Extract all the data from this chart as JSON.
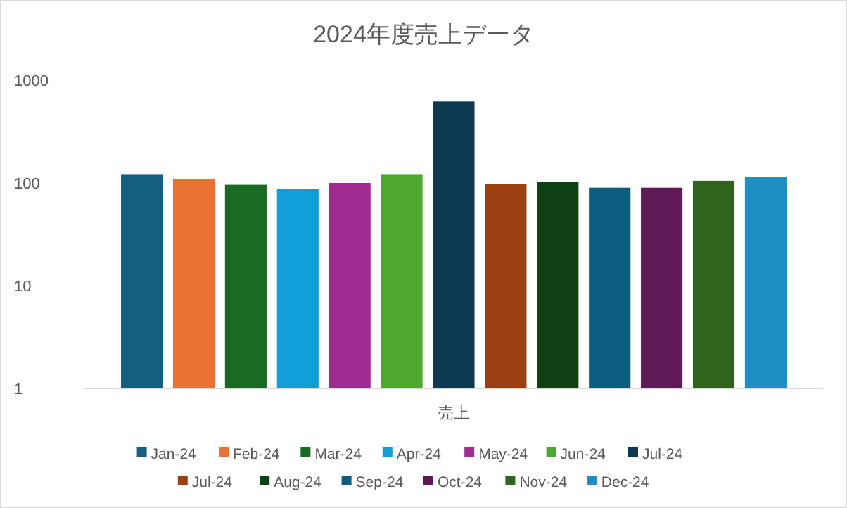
{
  "chart_data": {
    "type": "bar",
    "title": "2024年度売上データ",
    "categories": [
      "売上"
    ],
    "log": true,
    "ylim": [
      1,
      1000
    ],
    "yticks": [
      1,
      10,
      100,
      1000
    ],
    "legend": "bottom",
    "series": [
      {
        "name": "Jan-24",
        "color": "#156082",
        "values": [
          120
        ]
      },
      {
        "name": "Feb-24",
        "color": "#e97132",
        "values": [
          110
        ]
      },
      {
        "name": "Mar-24",
        "color": "#196b24",
        "values": [
          96
        ]
      },
      {
        "name": "Apr-24",
        "color": "#0f9ed5",
        "values": [
          88
        ]
      },
      {
        "name": "May-24",
        "color": "#a02b93",
        "values": [
          100
        ]
      },
      {
        "name": "Jun-24",
        "color": "#4ea72e",
        "values": [
          120
        ]
      },
      {
        "name": "Jul-24",
        "color": "#0e3a51",
        "values": [
          620
        ]
      },
      {
        "name": "Jul-24",
        "color": "#9b4010",
        "values": [
          98
        ]
      },
      {
        "name": "Aug-24",
        "color": "#0f4115",
        "values": [
          103
        ]
      },
      {
        "name": "Sep-24",
        "color": "#0b5e80",
        "values": [
          90
        ]
      },
      {
        "name": "Oct-24",
        "color": "#601a57",
        "values": [
          90
        ]
      },
      {
        "name": "Nov-24",
        "color": "#2e641c",
        "values": [
          105
        ]
      },
      {
        "name": "Dec-24",
        "color": "#1f8fc3",
        "values": [
          115
        ]
      }
    ]
  }
}
